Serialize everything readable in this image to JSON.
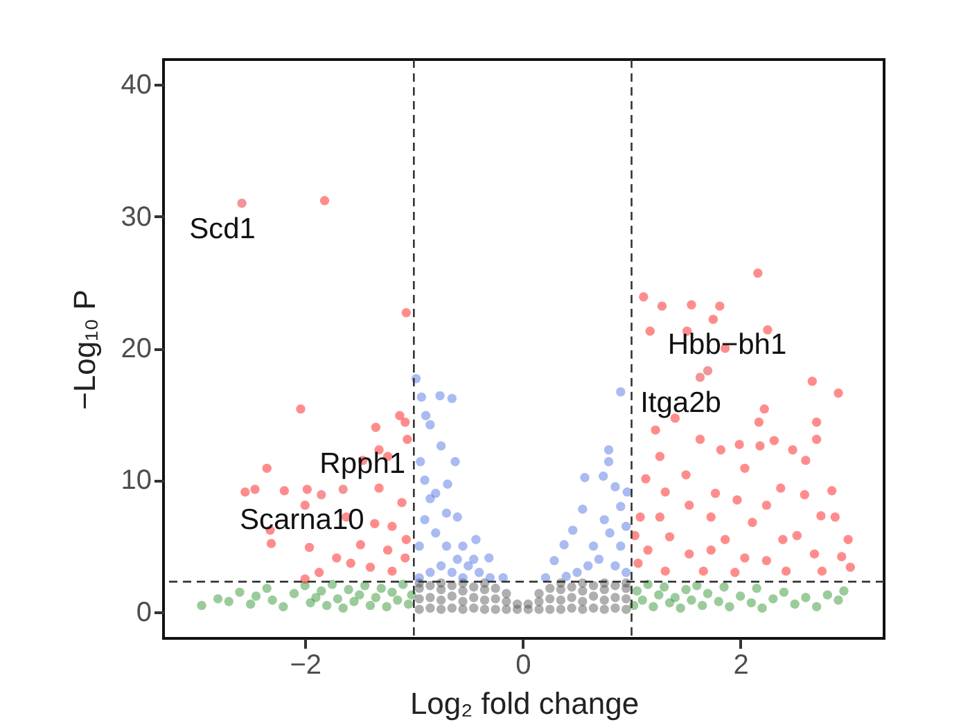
{
  "chart_data": {
    "type": "scatter",
    "xlabel": "Log₂ fold change",
    "ylabel": "−Log₁₀ P",
    "xlim": [
      -3.3,
      3.32
    ],
    "ylim": [
      -2,
      41.9
    ],
    "xticks": [
      {
        "value": -2,
        "label": "−2"
      },
      0,
      2
    ],
    "yticks": [
      0,
      10,
      20,
      30,
      40
    ],
    "grid": false,
    "marker": "circle",
    "series": [
      {
        "color": "#4d4d4d",
        "x": [
          -0.95,
          -0.95,
          -0.95,
          -0.95,
          -0.85,
          -0.85,
          -0.85,
          -0.75,
          -0.75,
          -0.75,
          -0.75,
          -0.65,
          -0.65,
          -0.65,
          -0.55,
          -0.55,
          -0.55,
          -0.55,
          -0.45,
          -0.45,
          -0.45,
          -0.35,
          -0.35,
          -0.35,
          -0.35,
          -0.25,
          -0.25,
          -0.25,
          -0.15,
          -0.15,
          -0.15,
          -0.05,
          -0.05,
          0.05,
          0.05,
          0.15,
          0.15,
          0.15,
          0.25,
          0.25,
          0.25,
          0.35,
          0.35,
          0.35,
          0.35,
          0.45,
          0.45,
          0.45,
          0.55,
          0.55,
          0.55,
          0.55,
          0.65,
          0.65,
          0.65,
          0.75,
          0.75,
          0.75,
          0.75,
          0.85,
          0.85,
          0.85,
          0.95,
          0.95,
          0.95,
          0.95
        ],
        "values": [
          0.2,
          1.0,
          1.8,
          2.2,
          0.3,
          1.1,
          2.0,
          0.2,
          0.9,
          1.7,
          2.2,
          0.3,
          1.2,
          2.0,
          0.2,
          0.8,
          1.6,
          2.2,
          0.3,
          1.1,
          1.9,
          0.2,
          0.9,
          1.7,
          2.2,
          0.2,
          1.0,
          1.8,
          0.2,
          0.8,
          1.4,
          0.2,
          0.6,
          0.2,
          0.6,
          0.2,
          0.8,
          1.4,
          0.2,
          1.0,
          1.8,
          0.2,
          0.9,
          1.7,
          2.2,
          0.3,
          1.1,
          1.9,
          0.2,
          0.8,
          1.6,
          2.2,
          0.3,
          1.2,
          2.0,
          0.2,
          0.9,
          1.7,
          2.2,
          0.3,
          1.1,
          2.0,
          0.2,
          1.0,
          1.8,
          2.2
        ]
      },
      {
        "color": "#228b22",
        "x": [
          -2.95,
          -2.8,
          -2.7,
          -2.6,
          -2.5,
          -2.45,
          -2.35,
          -2.3,
          -2.2,
          -2.1,
          -2.0,
          -1.95,
          -1.9,
          -1.85,
          -1.8,
          -1.75,
          -1.7,
          -1.65,
          -1.6,
          -1.55,
          -1.5,
          -1.45,
          -1.4,
          -1.35,
          -1.3,
          -1.25,
          -1.2,
          -1.15,
          -1.1,
          -1.05,
          -1.02,
          1.02,
          1.05,
          1.1,
          1.15,
          1.2,
          1.25,
          1.3,
          1.35,
          1.4,
          1.45,
          1.5,
          1.55,
          1.6,
          1.65,
          1.7,
          1.8,
          1.85,
          1.9,
          2.0,
          2.1,
          2.15,
          2.2,
          2.3,
          2.4,
          2.5,
          2.6,
          2.7,
          2.8,
          2.9,
          2.95
        ],
        "values": [
          0.5,
          1.0,
          0.8,
          1.5,
          0.6,
          1.2,
          1.8,
          0.9,
          0.4,
          1.4,
          2.0,
          0.7,
          1.1,
          1.6,
          0.5,
          2.1,
          1.0,
          0.3,
          1.7,
          0.8,
          1.3,
          2.0,
          0.5,
          1.1,
          1.8,
          0.4,
          1.5,
          0.9,
          2.1,
          0.6,
          1.3,
          0.5,
          1.6,
          0.9,
          2.1,
          0.4,
          1.3,
          1.9,
          0.7,
          1.1,
          0.3,
          1.7,
          0.9,
          2.0,
          0.5,
          1.4,
          0.8,
          1.9,
          0.4,
          1.2,
          0.7,
          1.8,
          0.3,
          1.0,
          1.5,
          0.6,
          1.1,
          0.4,
          1.3,
          0.9,
          1.6
        ]
      },
      {
        "color": "#4169e1",
        "x": [
          -0.98,
          -0.93,
          -0.76,
          -0.65,
          -0.89,
          -0.85,
          -0.75,
          -0.62,
          -0.94,
          -0.69,
          -0.85,
          -0.6,
          -0.43,
          -0.31,
          -0.18,
          -0.95,
          -0.9,
          -0.8,
          -0.7,
          -0.6,
          -0.5,
          -0.4,
          -0.3,
          -0.85,
          -0.75,
          -0.65,
          -0.55,
          -0.95,
          -0.8,
          -0.7,
          -0.9,
          -0.55,
          -0.45,
          0.79,
          0.79,
          0.57,
          0.74,
          0.96,
          0.55,
          0.46,
          0.38,
          0.29,
          0.21,
          0.9,
          0.9,
          0.8,
          0.7,
          0.6,
          0.5,
          0.4,
          0.95,
          0.85,
          0.75,
          0.65,
          0.9,
          0.95,
          0.85
        ],
        "values": [
          17.7,
          16.3,
          16.4,
          16.2,
          14.9,
          14.2,
          12.6,
          11.4,
          11.4,
          9.7,
          8.6,
          7.2,
          5.5,
          4.1,
          2.6,
          5,
          7,
          6,
          5,
          4,
          3.5,
          3,
          2.6,
          3,
          3.5,
          3,
          2.6,
          2.6,
          9,
          7.5,
          10,
          5,
          4,
          12.3,
          11.4,
          10.2,
          10.3,
          9.1,
          7.8,
          6.2,
          5.1,
          3.9,
          2.6,
          16.7,
          5,
          6,
          4,
          3.5,
          3,
          2.7,
          3,
          3.5,
          7,
          5,
          8,
          6.5,
          9.5
        ]
      },
      {
        "color": "#ff0000",
        "x": [
          -1.82,
          -1.07,
          -2.04,
          -2.35,
          -2.55,
          -2.46,
          -2.19,
          -1.98,
          -2.0,
          -2.32,
          -2.31,
          -1.96,
          -1.71,
          -2.0,
          -1.87,
          -1.35,
          -1.32,
          -1.13,
          -1.08,
          -1.06,
          -1.24,
          -1.47,
          -1.32,
          -1.11,
          -1.2,
          -1.36,
          -1.49,
          -1.24,
          -1.08,
          -1.58,
          -1.4,
          -1.2,
          -1.07,
          -1.62,
          2.16,
          1.11,
          1.28,
          1.55,
          1.81,
          1.75,
          1.17,
          1.51,
          2.25,
          1.86,
          2.66,
          2.9,
          2.22,
          1.4,
          2.17,
          2.7,
          1.22,
          1.63,
          2.7,
          1.99,
          2.18,
          2.31,
          2.48,
          1.82,
          2.6,
          1.26,
          2.04,
          1.5,
          1.13,
          2.37,
          2.84,
          1.31,
          1.77,
          2.59,
          1.97,
          1.53,
          2.24,
          2.74,
          2.87,
          1.26,
          1.73,
          2.11,
          2.39,
          2.99,
          1.35,
          1.86,
          2.52,
          1.15,
          1.53,
          1.73,
          2.04,
          2.24,
          2.68,
          2.93,
          1.06,
          1.31,
          1.66,
          1.95,
          2.42,
          2.75,
          3.01,
          1.03,
          1.08
        ],
        "values": [
          31.2,
          22.7,
          15.4,
          10.9,
          9.1,
          9.3,
          9.2,
          9.3,
          8.1,
          6.2,
          5.2,
          4.9,
          4.1,
          2.5,
          3.0,
          14.0,
          12.3,
          14.9,
          14.4,
          13.1,
          11.8,
          11.5,
          9.4,
          8.3,
          6.5,
          6.7,
          5.1,
          4.7,
          4.1,
          3.7,
          3.4,
          3.1,
          5.5,
          7.2,
          25.7,
          23.9,
          23.2,
          23.3,
          23.2,
          22.2,
          21.3,
          21.3,
          21.4,
          20.0,
          17.5,
          16.6,
          15.4,
          14.7,
          14.4,
          14.4,
          13.8,
          13.1,
          13.1,
          12.7,
          12.6,
          13.0,
          12.3,
          12.3,
          11.5,
          11.8,
          10.9,
          10.4,
          10.1,
          9.4,
          9.2,
          9.1,
          9.0,
          8.9,
          8.5,
          8.1,
          8.1,
          7.3,
          7.2,
          7.2,
          7.2,
          6.8,
          5.5,
          5.5,
          5.7,
          5.5,
          5.8,
          4.7,
          4.4,
          4.7,
          4.1,
          3.9,
          4.4,
          4.2,
          3.7,
          3.1,
          3.1,
          3.0,
          3.1,
          3.1,
          3.4,
          5.8,
          7.2
        ]
      },
      {
        "color": "#e3141b",
        "x": [
          -2.58,
          -1.65,
          -1.85,
          1.7,
          1.63
        ],
        "values": [
          31.0,
          9.3,
          8.9,
          18.3,
          17.8
        ]
      }
    ],
    "ref_lines": [
      {
        "axis": "x",
        "value": -1,
        "line_style": "dashed"
      },
      {
        "axis": "x",
        "value": 1,
        "line_style": "dashed"
      },
      {
        "axis": "y",
        "value": 2.3,
        "line_style": "dashed"
      }
    ],
    "annotations": [
      {
        "text": "Scd1",
        "x": -2.58,
        "y": 31.0
      },
      {
        "text": "Rpph1",
        "x": -1.65,
        "y": 9.3
      },
      {
        "text": "Scarna10",
        "x": -1.85,
        "y": 8.9
      },
      {
        "text": "Hbb−bh1",
        "x": 1.7,
        "y": 18.3
      },
      {
        "text": "Itga2b",
        "x": 1.63,
        "y": 17.8
      }
    ]
  }
}
